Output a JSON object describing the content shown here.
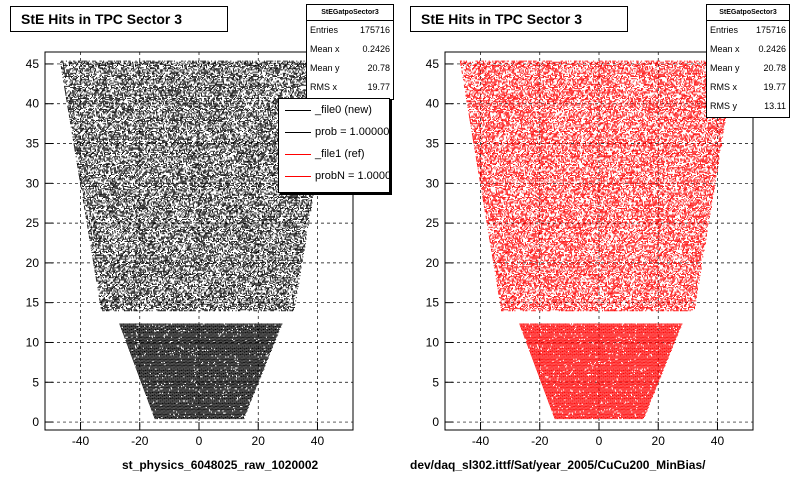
{
  "chart_data": [
    {
      "type": "scatter",
      "title": "StE Hits in TPC Sector 3",
      "xlabel": "st_physics_6048025_raw_1020002",
      "ylabel": "",
      "xlim": [
        -52,
        52
      ],
      "ylim": [
        -1,
        46.5
      ],
      "x_ticks": [
        -40,
        -20,
        0,
        20,
        40
      ],
      "y_ticks": [
        0,
        5,
        10,
        15,
        20,
        25,
        30,
        35,
        40,
        45
      ],
      "grid": true,
      "marker_color": "#000000",
      "stats": {
        "name": "StEGatpoSector3",
        "rows": [
          {
            "label": "Entries",
            "value": "175716"
          },
          {
            "label": "Mean x",
            "value": "0.2426"
          },
          {
            "label": "Mean y",
            "value": "20.78"
          },
          {
            "label": "RMS x",
            "value": "19.77"
          }
        ]
      },
      "legend": {
        "position": "top-right",
        "items": [
          {
            "label": "_file0 (new)",
            "color": "#000000"
          },
          {
            "label": "prob = 1.000000",
            "color": "#000000"
          },
          {
            "label": "_file1 (ref)",
            "color": "#ff0000"
          },
          {
            "label": "probN = 1.000000",
            "color": "#ff0000"
          }
        ]
      },
      "band": {
        "y_bottom": [
          0.5,
          12.5
        ],
        "x_bottom": [
          [
            -15,
            15
          ],
          [
            -27,
            28
          ]
        ],
        "y_top": [
          14,
          45.5
        ],
        "x_top": [
          [
            -33,
            32
          ],
          [
            -47,
            46
          ]
        ]
      }
    },
    {
      "type": "scatter",
      "title": "StE Hits in TPC Sector 3",
      "xlabel": "dev/daq_sl302.ittf/Sat/year_2005/CuCu200_MinBias/",
      "ylabel": "",
      "xlim": [
        -52,
        52
      ],
      "ylim": [
        -1,
        46.5
      ],
      "x_ticks": [
        -40,
        -20,
        0,
        20,
        40
      ],
      "y_ticks": [
        0,
        5,
        10,
        15,
        20,
        25,
        30,
        35,
        40,
        45
      ],
      "grid": true,
      "marker_color": "#ff0000",
      "stats": {
        "name": "StEGatpoSector3",
        "rows": [
          {
            "label": "Entries",
            "value": "175716"
          },
          {
            "label": "Mean x",
            "value": "0.2426"
          },
          {
            "label": "Mean y",
            "value": "20.78"
          },
          {
            "label": "RMS x",
            "value": "19.77"
          },
          {
            "label": "RMS y",
            "value": "13.11"
          }
        ]
      }
    }
  ]
}
